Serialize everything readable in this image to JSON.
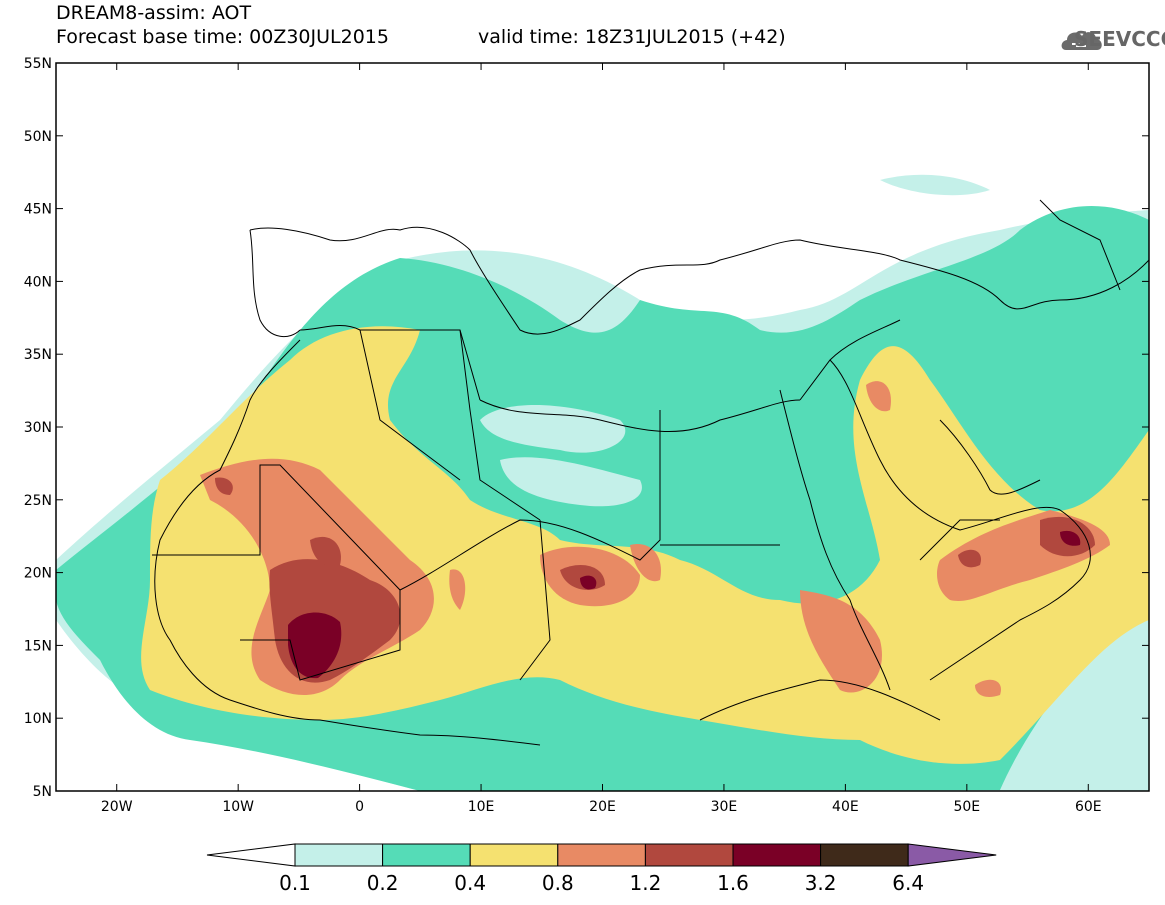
{
  "header": {
    "title_line1": "DREAM8-assim: AOT",
    "title_line2": "Forecast base time: 00Z30JUL2015",
    "valid_time": "valid time: 18Z31JUL2015 (+42)",
    "logo_text": "SEEVCCC",
    "logo_icon": "cloud-logo-icon"
  },
  "map": {
    "lon_range": [
      -25,
      65
    ],
    "lat_range": [
      5,
      55
    ],
    "lon_labels": [
      "20W",
      "10W",
      "0",
      "10E",
      "20E",
      "30E",
      "40E",
      "50E",
      "60E"
    ],
    "lon_values": [
      -20,
      -10,
      0,
      10,
      20,
      30,
      40,
      50,
      60
    ],
    "lat_labels": [
      "55N",
      "50N",
      "45N",
      "40N",
      "35N",
      "30N",
      "25N",
      "20N",
      "15N",
      "10N",
      "5N"
    ],
    "lat_values": [
      55,
      50,
      45,
      40,
      35,
      30,
      25,
      20,
      15,
      10,
      5
    ]
  },
  "legend": {
    "levels": [
      "0.1",
      "0.2",
      "0.4",
      "0.8",
      "1.2",
      "1.6",
      "3.2",
      "6.4"
    ],
    "colors": [
      "#ffffff",
      "#c4f0e9",
      "#55dcb7",
      "#f5e170",
      "#e88a64",
      "#b1483e",
      "#7a0026",
      "#3f2a1a",
      "#8a5aa6"
    ]
  }
}
